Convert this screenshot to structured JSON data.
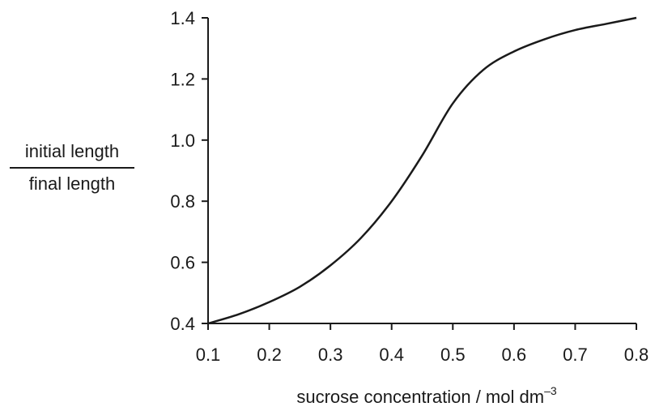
{
  "chart_data": {
    "type": "line",
    "title": "",
    "xlabel": "sucrose concentration / mol dm",
    "xlabel_superscript": "–3",
    "ylabel_numerator": "initial length",
    "ylabel_denominator": "final length",
    "xlim": [
      0.1,
      0.8
    ],
    "ylim": [
      0.4,
      1.4
    ],
    "x_ticks": [
      0.1,
      0.2,
      0.3,
      0.4,
      0.5,
      0.6,
      0.7,
      0.8
    ],
    "x_tick_labels": [
      "0.1",
      "0.2",
      "0.3",
      "0.4",
      "0.5",
      "0.6",
      "0.7",
      "0.8"
    ],
    "y_ticks": [
      0.4,
      0.6,
      0.8,
      1.0,
      1.2,
      1.4
    ],
    "y_tick_labels": [
      "0.4",
      "0.6",
      "0.8",
      "1.0",
      "1.2",
      "1.4"
    ],
    "grid": false,
    "line_color": "#1a1a1a",
    "series": [
      {
        "x": [
          0.1,
          0.15,
          0.2,
          0.25,
          0.3,
          0.35,
          0.4,
          0.45,
          0.5,
          0.55,
          0.6,
          0.65,
          0.7,
          0.75,
          0.8
        ],
        "y": [
          0.4,
          0.43,
          0.47,
          0.52,
          0.59,
          0.68,
          0.8,
          0.95,
          1.12,
          1.23,
          1.29,
          1.33,
          1.36,
          1.38,
          1.4
        ]
      }
    ]
  }
}
